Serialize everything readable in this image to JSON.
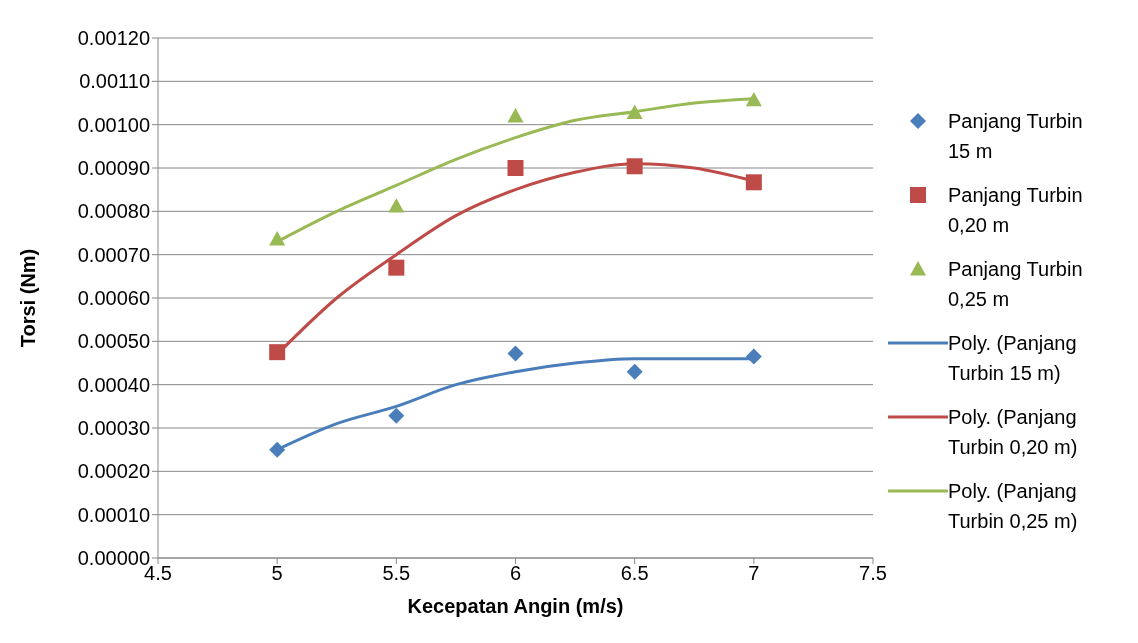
{
  "chart_data": {
    "type": "scatter",
    "xlabel": "Kecepatan Angin (m/s)",
    "ylabel": "Torsi (Nm)",
    "xlim": [
      4.5,
      7.5
    ],
    "xticks": [
      4.5,
      5,
      5.5,
      6,
      6.5,
      7,
      7.5
    ],
    "ylim": [
      0,
      0.0012
    ],
    "yticks": [
      {
        "value": 0,
        "label": "0.00000"
      },
      {
        "value": 0.0001,
        "label": "0.00010"
      },
      {
        "value": 0.0002,
        "label": "0.00020"
      },
      {
        "value": 0.0003,
        "label": "0.00030"
      },
      {
        "value": 0.0004,
        "label": "0.00040"
      },
      {
        "value": 0.0005,
        "label": "0.00050"
      },
      {
        "value": 0.0006,
        "label": "0.00060"
      },
      {
        "value": 0.0007,
        "label": "0.00070"
      },
      {
        "value": 0.0008,
        "label": "0.00080"
      },
      {
        "value": 0.0009,
        "label": "0.00090"
      },
      {
        "value": 0.001,
        "label": "0.00100"
      },
      {
        "value": 0.0011,
        "label": "0.00110"
      },
      {
        "value": 0.0012,
        "label": "0.00120"
      }
    ],
    "grid": "y",
    "legend": "right",
    "x": [
      5,
      5.5,
      6,
      6.5,
      7
    ],
    "series": [
      {
        "name": "Panjang Turbin 15 m",
        "color": "#4a7ebb",
        "marker": "diamond",
        "values": [
          0.00025,
          0.000328,
          0.000472,
          0.00043,
          0.000465
        ]
      },
      {
        "name": "Panjang Turbin 0,20 m",
        "color": "#be4b48",
        "marker": "square",
        "values": [
          0.000475,
          0.00067,
          0.0009,
          0.000904,
          0.000867
        ]
      },
      {
        "name": "Panjang Turbin 0,25 m",
        "color": "#98b954",
        "marker": "triangle",
        "values": [
          0.000736,
          0.000812,
          0.00102,
          0.001028,
          0.001057
        ]
      },
      {
        "name": "Poly. (Panjang Turbin 15 m)",
        "type": "line",
        "color": "#4a7ebb",
        "x": [
          5,
          5.25,
          5.5,
          5.75,
          6,
          6.25,
          6.5,
          6.75,
          7
        ],
        "values": [
          0.00025,
          0.00031,
          0.00035,
          0.0004,
          0.00043,
          0.00045,
          0.00046,
          0.00046,
          0.00046
        ]
      },
      {
        "name": "Poly. (Panjang Turbin 0,20 m)",
        "type": "line",
        "color": "#be4b48",
        "x": [
          5,
          5.25,
          5.5,
          5.75,
          6,
          6.25,
          6.5,
          6.75,
          7
        ],
        "values": [
          0.00047,
          0.0006,
          0.0007,
          0.00079,
          0.00085,
          0.00089,
          0.00091,
          0.0009,
          0.00087
        ]
      },
      {
        "name": "Poly. (Panjang Turbin 0,25 m)",
        "type": "line",
        "color": "#98b954",
        "x": [
          5,
          5.25,
          5.5,
          5.75,
          6,
          6.25,
          6.5,
          6.75,
          7
        ],
        "values": [
          0.00073,
          0.0008,
          0.00086,
          0.00092,
          0.00097,
          0.00101,
          0.00103,
          0.00105,
          0.00106
        ]
      }
    ]
  }
}
